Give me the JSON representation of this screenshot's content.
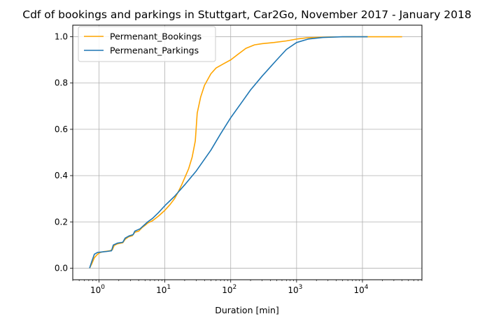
{
  "chart_data": {
    "type": "line",
    "title": "Cdf of bookings and parkings in Stuttgart, Car2Go, November 2017 - January 2018",
    "xlabel": "Duration [min]",
    "ylabel": "",
    "x_scale": "log",
    "xlim": [
      0.4,
      80000
    ],
    "ylim": [
      -0.05,
      1.05
    ],
    "grid": true,
    "legend_position": "top-left",
    "x_ticks": [
      {
        "value": 1,
        "base": "10",
        "exp": "0"
      },
      {
        "value": 10,
        "base": "10",
        "exp": "1"
      },
      {
        "value": 100,
        "base": "10",
        "exp": "2"
      },
      {
        "value": 1000,
        "base": "10",
        "exp": "3"
      },
      {
        "value": 10000,
        "base": "10",
        "exp": "4"
      }
    ],
    "y_ticks": [
      "0.0",
      "0.2",
      "0.4",
      "0.6",
      "0.8",
      "1.0"
    ],
    "series": [
      {
        "name": "Permenant_Bookings",
        "color": "#ffa500",
        "points": [
          [
            0.72,
            0.0
          ],
          [
            0.78,
            0.02
          ],
          [
            0.85,
            0.045
          ],
          [
            0.95,
            0.06
          ],
          [
            1.05,
            0.068
          ],
          [
            1.2,
            0.072
          ],
          [
            1.45,
            0.075
          ],
          [
            1.6,
            0.08
          ],
          [
            1.7,
            0.098
          ],
          [
            1.9,
            0.105
          ],
          [
            2.3,
            0.11
          ],
          [
            2.5,
            0.125
          ],
          [
            2.8,
            0.135
          ],
          [
            3.2,
            0.14
          ],
          [
            3.5,
            0.155
          ],
          [
            4.0,
            0.16
          ],
          [
            4.5,
            0.175
          ],
          [
            5.0,
            0.185
          ],
          [
            5.5,
            0.195
          ],
          [
            6.5,
            0.205
          ],
          [
            8.0,
            0.225
          ],
          [
            10,
            0.25
          ],
          [
            12,
            0.275
          ],
          [
            14,
            0.3
          ],
          [
            16,
            0.33
          ],
          [
            18,
            0.36
          ],
          [
            20,
            0.39
          ],
          [
            23,
            0.43
          ],
          [
            26,
            0.48
          ],
          [
            29,
            0.55
          ],
          [
            31,
            0.67
          ],
          [
            35,
            0.74
          ],
          [
            40,
            0.79
          ],
          [
            50,
            0.84
          ],
          [
            60,
            0.865
          ],
          [
            80,
            0.885
          ],
          [
            100,
            0.9
          ],
          [
            130,
            0.925
          ],
          [
            170,
            0.95
          ],
          [
            230,
            0.965
          ],
          [
            300,
            0.97
          ],
          [
            450,
            0.975
          ],
          [
            700,
            0.982
          ],
          [
            1000,
            0.99
          ],
          [
            1500,
            0.996
          ],
          [
            3000,
            0.999
          ],
          [
            10000,
            1.0
          ],
          [
            40000,
            1.0
          ]
        ]
      },
      {
        "name": "Permenant_Parkings",
        "color": "#1f77b4",
        "points": [
          [
            0.72,
            0.0
          ],
          [
            0.78,
            0.03
          ],
          [
            0.85,
            0.06
          ],
          [
            0.95,
            0.068
          ],
          [
            1.1,
            0.07
          ],
          [
            1.3,
            0.072
          ],
          [
            1.55,
            0.075
          ],
          [
            1.65,
            0.1
          ],
          [
            1.9,
            0.108
          ],
          [
            2.3,
            0.112
          ],
          [
            2.5,
            0.13
          ],
          [
            2.9,
            0.14
          ],
          [
            3.3,
            0.145
          ],
          [
            3.5,
            0.16
          ],
          [
            4.2,
            0.17
          ],
          [
            4.8,
            0.185
          ],
          [
            5.5,
            0.2
          ],
          [
            6.5,
            0.215
          ],
          [
            8.0,
            0.24
          ],
          [
            10,
            0.27
          ],
          [
            14,
            0.31
          ],
          [
            20,
            0.36
          ],
          [
            30,
            0.42
          ],
          [
            50,
            0.51
          ],
          [
            70,
            0.58
          ],
          [
            100,
            0.65
          ],
          [
            150,
            0.72
          ],
          [
            200,
            0.77
          ],
          [
            300,
            0.83
          ],
          [
            500,
            0.9
          ],
          [
            700,
            0.945
          ],
          [
            1000,
            0.975
          ],
          [
            1500,
            0.99
          ],
          [
            2500,
            0.997
          ],
          [
            5000,
            1.0
          ],
          [
            12000,
            1.0
          ]
        ]
      }
    ]
  }
}
